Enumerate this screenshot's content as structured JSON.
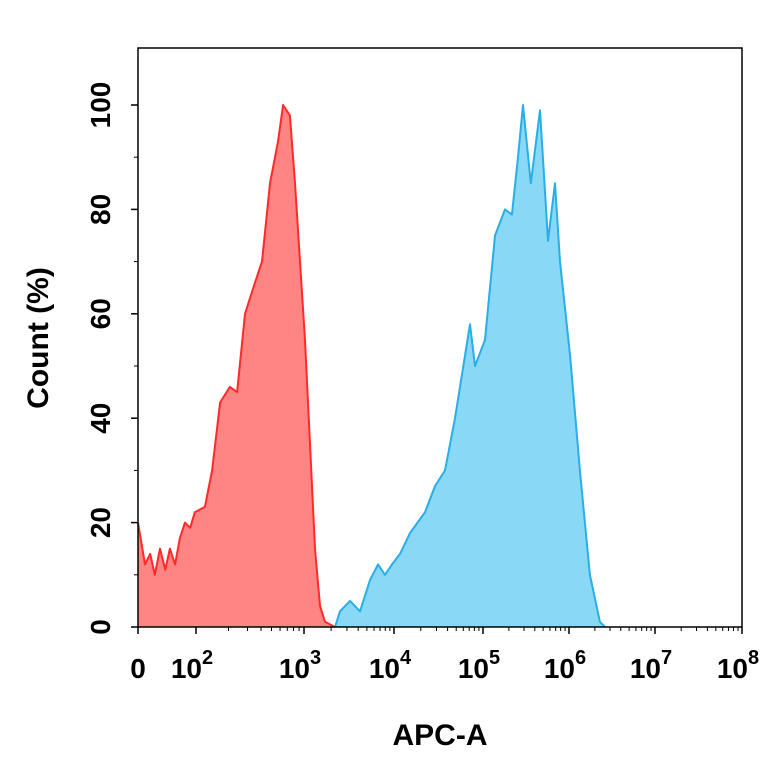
{
  "chart_data": {
    "type": "area",
    "xlabel": "APC-A",
    "ylabel": "Count (%)",
    "x_scale": "biexponential (log above 10^2)",
    "xlim": [
      0,
      100000000
    ],
    "ylim": [
      0,
      100
    ],
    "grid": false,
    "x_ticks": [
      {
        "base": "0",
        "exp": ""
      },
      {
        "base": "10",
        "exp": "2"
      },
      {
        "base": "10",
        "exp": "3"
      },
      {
        "base": "10",
        "exp": "4"
      },
      {
        "base": "10",
        "exp": "5"
      },
      {
        "base": "10",
        "exp": "6"
      },
      {
        "base": "10",
        "exp": "7"
      },
      {
        "base": "10",
        "exp": "8"
      }
    ],
    "y_ticks": [
      "0",
      "20",
      "40",
      "60",
      "80",
      "100"
    ],
    "series": [
      {
        "color": "#ff2a2a",
        "fill": "#ff8585",
        "x": [
          0,
          12,
          21,
          29,
          38,
          47,
          55,
          64,
          72,
          81,
          90,
          98,
          121,
          141,
          167,
          206,
          240,
          284,
          352,
          408,
          484,
          574,
          640,
          741,
          826,
          918,
          1026,
          1166,
          1326,
          1506,
          1711,
          2210
        ],
        "y": [
          20,
          12,
          14,
          10,
          15,
          11,
          15,
          12,
          17,
          20,
          19,
          22,
          23,
          30,
          43,
          46,
          45,
          60,
          66,
          70,
          85,
          93,
          100,
          98,
          85,
          70,
          55,
          35,
          15,
          4,
          1,
          0
        ]
      },
      {
        "color": "#2aaee6",
        "fill": "#88d8f6",
        "x": [
          2210,
          2512,
          3245,
          4192,
          5412,
          6637,
          7943,
          9500,
          11680,
          15130,
          22300,
          28900,
          37400,
          48400,
          62800,
          71400,
          81300,
          105500,
          138000,
          180000,
          217000,
          255000,
          292000,
          360000,
          460000,
          570000,
          687000,
          785000,
          1030000,
          1340000,
          1750000,
          2290000,
          2620000
        ],
        "y": [
          0,
          3,
          5,
          3,
          9,
          12,
          10,
          12,
          14,
          18,
          22,
          27,
          30,
          40,
          52,
          58,
          50,
          55,
          75,
          80,
          79,
          90,
          100,
          85,
          99,
          74,
          85,
          70,
          52,
          30,
          10,
          1,
          0
        ]
      }
    ]
  }
}
